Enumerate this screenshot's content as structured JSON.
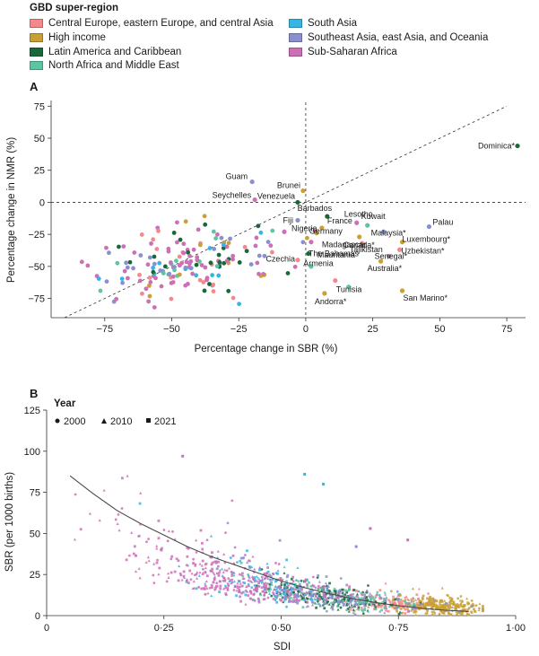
{
  "legend": {
    "title": "GBD super-region",
    "items": [
      {
        "label": "Central Europe, eastern Europe, and central Asia",
        "color": "#f4888a"
      },
      {
        "label": "High income",
        "color": "#c8a035"
      },
      {
        "label": "Latin America and Caribbean",
        "color": "#17693a"
      },
      {
        "label": "North Africa and Middle East",
        "color": "#5cc6a2"
      },
      {
        "label": "South Asia",
        "color": "#35b5e6"
      },
      {
        "label": "Southeast Asia, east Asia, and Oceania",
        "color": "#8a8fd0"
      },
      {
        "label": "Sub-Saharan Africa",
        "color": "#cc6fb5"
      }
    ]
  },
  "chart_data": [
    {
      "panel": "A",
      "type": "scatter",
      "xlabel": "Percentage change in SBR (%)",
      "ylabel": "Percentage change in NMR (%)",
      "xlim": [
        -95,
        82
      ],
      "ylim": [
        -90,
        78
      ],
      "xticks": [
        -75,
        -50,
        -25,
        0,
        25,
        50,
        75
      ],
      "yticks": [
        75,
        50,
        25,
        0,
        -25,
        -50,
        -75
      ],
      "xtick_labels": [
        "−75",
        "−50",
        "−25",
        "0",
        "25",
        "50",
        "75"
      ],
      "ytick_labels": [
        "75",
        "50",
        "25",
        "0",
        "−25",
        "−50",
        "−75"
      ],
      "reference_lines": [
        "y = 0 (dashed)",
        "x = 0 (dashed)",
        "y = x (dashed)"
      ],
      "labeled_points": [
        {
          "label": "Dominica*",
          "x": 79,
          "y": 44,
          "region": 2
        },
        {
          "label": "Guam",
          "x": -20,
          "y": 16,
          "region": 5
        },
        {
          "label": "Brunei",
          "x": -1,
          "y": 9,
          "region": 1
        },
        {
          "label": "Seychelles",
          "x": -19,
          "y": 2,
          "region": 6
        },
        {
          "label": "Venezuela",
          "x": -3,
          "y": 0,
          "region": 2
        },
        {
          "label": "Barbados",
          "x": 8,
          "y": -11,
          "region": 2
        },
        {
          "label": "Lesotho",
          "x": 19,
          "y": -16,
          "region": 6
        },
        {
          "label": "Fiji",
          "x": -3,
          "y": -14,
          "region": 5
        },
        {
          "label": "Kuwait",
          "x": 23,
          "y": -18,
          "region": 3
        },
        {
          "label": "Palau",
          "x": 46,
          "y": -19,
          "region": 5
        },
        {
          "label": "France",
          "x": 6,
          "y": -20,
          "region": 1
        },
        {
          "label": "Malaysia*",
          "x": 29,
          "y": -23,
          "region": 5
        },
        {
          "label": "Nigeria",
          "x": -8,
          "y": -23,
          "region": 6
        },
        {
          "label": "Germany",
          "x": 4,
          "y": -24,
          "region": 1
        },
        {
          "label": "Canada*",
          "x": 20,
          "y": -27,
          "region": 1
        },
        {
          "label": "Luxembourg*",
          "x": 36,
          "y": -31,
          "region": 1
        },
        {
          "label": "Madagascar",
          "x": 2,
          "y": -31,
          "region": 6
        },
        {
          "label": "Tajikistan",
          "x": 21,
          "y": -32,
          "region": 0
        },
        {
          "label": "Uzbekistan*",
          "x": 35,
          "y": -37,
          "region": 0
        },
        {
          "label": "The Bahamas",
          "x": 1,
          "y": -40,
          "region": 2
        },
        {
          "label": "Senegal*",
          "x": 31,
          "y": -42,
          "region": 6
        },
        {
          "label": "Czechia",
          "x": -3,
          "y": -45,
          "region": 0
        },
        {
          "label": "Mauritania",
          "x": 2,
          "y": -50,
          "region": 3
        },
        {
          "label": "Australia*",
          "x": 28,
          "y": -46,
          "region": 1
        },
        {
          "label": "Armenia",
          "x": 11,
          "y": -61,
          "region": 0
        },
        {
          "label": "Tunisia",
          "x": 16,
          "y": -66,
          "region": 3
        },
        {
          "label": "San Marino*",
          "x": 36,
          "y": -69,
          "region": 1
        },
        {
          "label": "Andorra*",
          "x": 7,
          "y": -71,
          "region": 1
        }
      ]
    },
    {
      "panel": "B",
      "type": "scatter",
      "xlabel": "SDI",
      "ylabel": "SBR (per 1000 births)",
      "xlim": [
        0,
        1.0
      ],
      "ylim": [
        0,
        125
      ],
      "xticks": [
        0,
        0.25,
        0.5,
        0.75,
        1.0
      ],
      "xtick_labels": [
        "0",
        "0·25",
        "0·50",
        "0·75",
        "1·00"
      ],
      "yticks": [
        0,
        25,
        50,
        75,
        100,
        125
      ],
      "ytick_labels": [
        "0",
        "25",
        "50",
        "75",
        "100",
        "125"
      ],
      "year_legend": {
        "title": "Year",
        "items": [
          "2000",
          "2010",
          "2021"
        ]
      },
      "trend_line": [
        [
          0.05,
          85
        ],
        [
          0.1,
          74
        ],
        [
          0.15,
          64
        ],
        [
          0.2,
          56
        ],
        [
          0.25,
          49
        ],
        [
          0.3,
          42
        ],
        [
          0.35,
          36
        ],
        [
          0.4,
          31
        ],
        [
          0.45,
          26
        ],
        [
          0.5,
          21
        ],
        [
          0.55,
          17
        ],
        [
          0.6,
          13.5
        ],
        [
          0.65,
          10.5
        ],
        [
          0.7,
          8
        ],
        [
          0.75,
          6
        ],
        [
          0.8,
          4.5
        ],
        [
          0.85,
          3.3
        ],
        [
          0.9,
          2.5
        ]
      ],
      "outliers": [
        {
          "x": 0.29,
          "y": 97,
          "region": 6
        },
        {
          "x": 0.55,
          "y": 86,
          "region": 4
        },
        {
          "x": 0.59,
          "y": 80,
          "region": 4
        },
        {
          "x": 0.69,
          "y": 53,
          "region": 6
        },
        {
          "x": 0.66,
          "y": 42,
          "region": 5
        },
        {
          "x": 0.77,
          "y": 46,
          "region": 6
        }
      ]
    }
  ]
}
